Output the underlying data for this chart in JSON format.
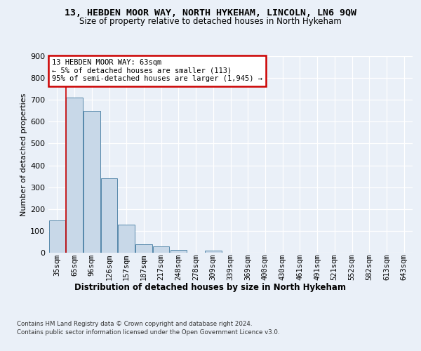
{
  "title_line1": "13, HEBDEN MOOR WAY, NORTH HYKEHAM, LINCOLN, LN6 9QW",
  "title_line2": "Size of property relative to detached houses in North Hykeham",
  "xlabel": "Distribution of detached houses by size in North Hykeham",
  "ylabel": "Number of detached properties",
  "footer_line1": "Contains HM Land Registry data © Crown copyright and database right 2024.",
  "footer_line2": "Contains public sector information licensed under the Open Government Licence v3.0.",
  "categories": [
    "35sqm",
    "65sqm",
    "96sqm",
    "126sqm",
    "157sqm",
    "187sqm",
    "217sqm",
    "248sqm",
    "278sqm",
    "309sqm",
    "339sqm",
    "369sqm",
    "400sqm",
    "430sqm",
    "461sqm",
    "491sqm",
    "521sqm",
    "552sqm",
    "582sqm",
    "613sqm",
    "643sqm"
  ],
  "values": [
    148,
    710,
    650,
    340,
    128,
    40,
    30,
    12,
    0,
    10,
    0,
    0,
    0,
    0,
    0,
    0,
    0,
    0,
    0,
    0,
    0
  ],
  "bar_color": "#c8d8e8",
  "bar_edge_color": "#5588aa",
  "annotation_text_line1": "13 HEBDEN MOOR WAY: 63sqm",
  "annotation_text_line2": "← 5% of detached houses are smaller (113)",
  "annotation_text_line3": "95% of semi-detached houses are larger (1,945) →",
  "annotation_box_color": "#ffffff",
  "annotation_box_edge": "#cc0000",
  "vline_color": "#cc0000",
  "vline_x_index": 0.5,
  "ylim": [
    0,
    900
  ],
  "background_color": "#eaf0f8",
  "plot_background": "#eaf0f8",
  "grid_color": "#ffffff",
  "title_fontsize": 9.5,
  "subtitle_fontsize": 8.5,
  "axis_label_fontsize": 8,
  "tick_fontsize": 7.5
}
